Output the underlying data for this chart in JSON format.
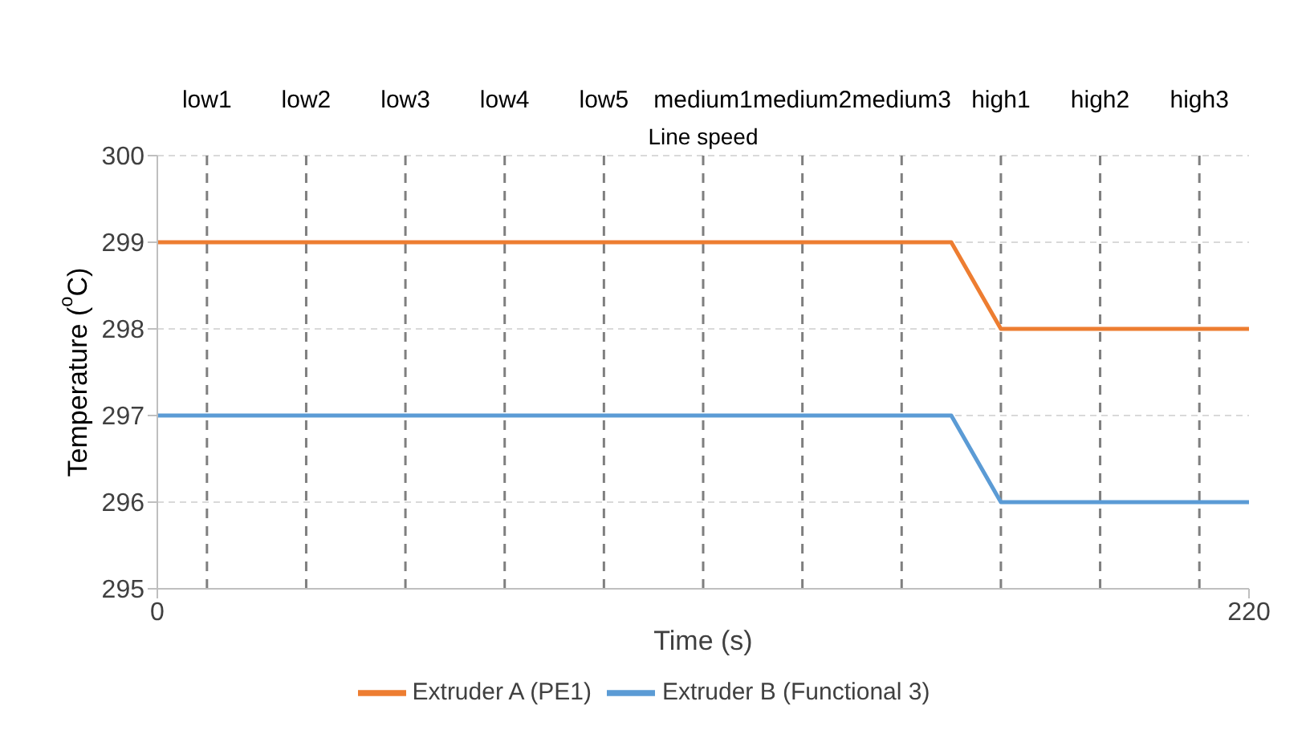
{
  "chart_data": {
    "type": "line",
    "xlabel": "Time (s)",
    "ylabel": "Temperature ($^{o}$C)",
    "annotations": [
      "Line speed"
    ],
    "xlim": [
      0,
      220
    ],
    "xticks": [
      0,
      220
    ],
    "ylim": [
      295,
      300
    ],
    "yticks": [
      295,
      296,
      297,
      298,
      299,
      300
    ],
    "grid": "y",
    "legend": "bottom",
    "marker": "none",
    "line_style": "solid",
    "series": [
      {
        "name": "Extruder A (PE1)",
        "color": "#ed7d31",
        "x": [
          0,
          160,
          170,
          220
        ],
        "values": [
          299,
          299,
          298,
          298
        ]
      },
      {
        "name": "Extruder B (Functional 3)",
        "color": "#5b9bd5",
        "x": [
          0,
          160,
          170,
          220
        ],
        "values": [
          297,
          297,
          296,
          296
        ]
      }
    ],
    "ref_lines": [
      {
        "axis": "x",
        "value": 10,
        "label": "low1",
        "line_style": "dashed",
        "color": "#7f7f7f"
      },
      {
        "axis": "x",
        "value": 30,
        "label": "low2",
        "line_style": "dashed",
        "color": "#7f7f7f"
      },
      {
        "axis": "x",
        "value": 50,
        "label": "low3",
        "line_style": "dashed",
        "color": "#7f7f7f"
      },
      {
        "axis": "x",
        "value": 70,
        "label": "low4",
        "line_style": "dashed",
        "color": "#7f7f7f"
      },
      {
        "axis": "x",
        "value": 90,
        "label": "low5",
        "line_style": "dashed",
        "color": "#7f7f7f"
      },
      {
        "axis": "x",
        "value": 110,
        "label": "medium1",
        "line_style": "dashed",
        "color": "#7f7f7f"
      },
      {
        "axis": "x",
        "value": 130,
        "label": "medium2",
        "line_style": "dashed",
        "color": "#7f7f7f"
      },
      {
        "axis": "x",
        "value": 150,
        "label": "medium3",
        "line_style": "dashed",
        "color": "#7f7f7f"
      },
      {
        "axis": "x",
        "value": 170,
        "label": "high1",
        "line_style": "dashed",
        "color": "#7f7f7f"
      },
      {
        "axis": "x",
        "value": 190,
        "label": "high2",
        "line_style": "dashed",
        "color": "#7f7f7f"
      },
      {
        "axis": "x",
        "value": 210,
        "label": "high3",
        "line_style": "dashed",
        "color": "#7f7f7f"
      }
    ]
  }
}
